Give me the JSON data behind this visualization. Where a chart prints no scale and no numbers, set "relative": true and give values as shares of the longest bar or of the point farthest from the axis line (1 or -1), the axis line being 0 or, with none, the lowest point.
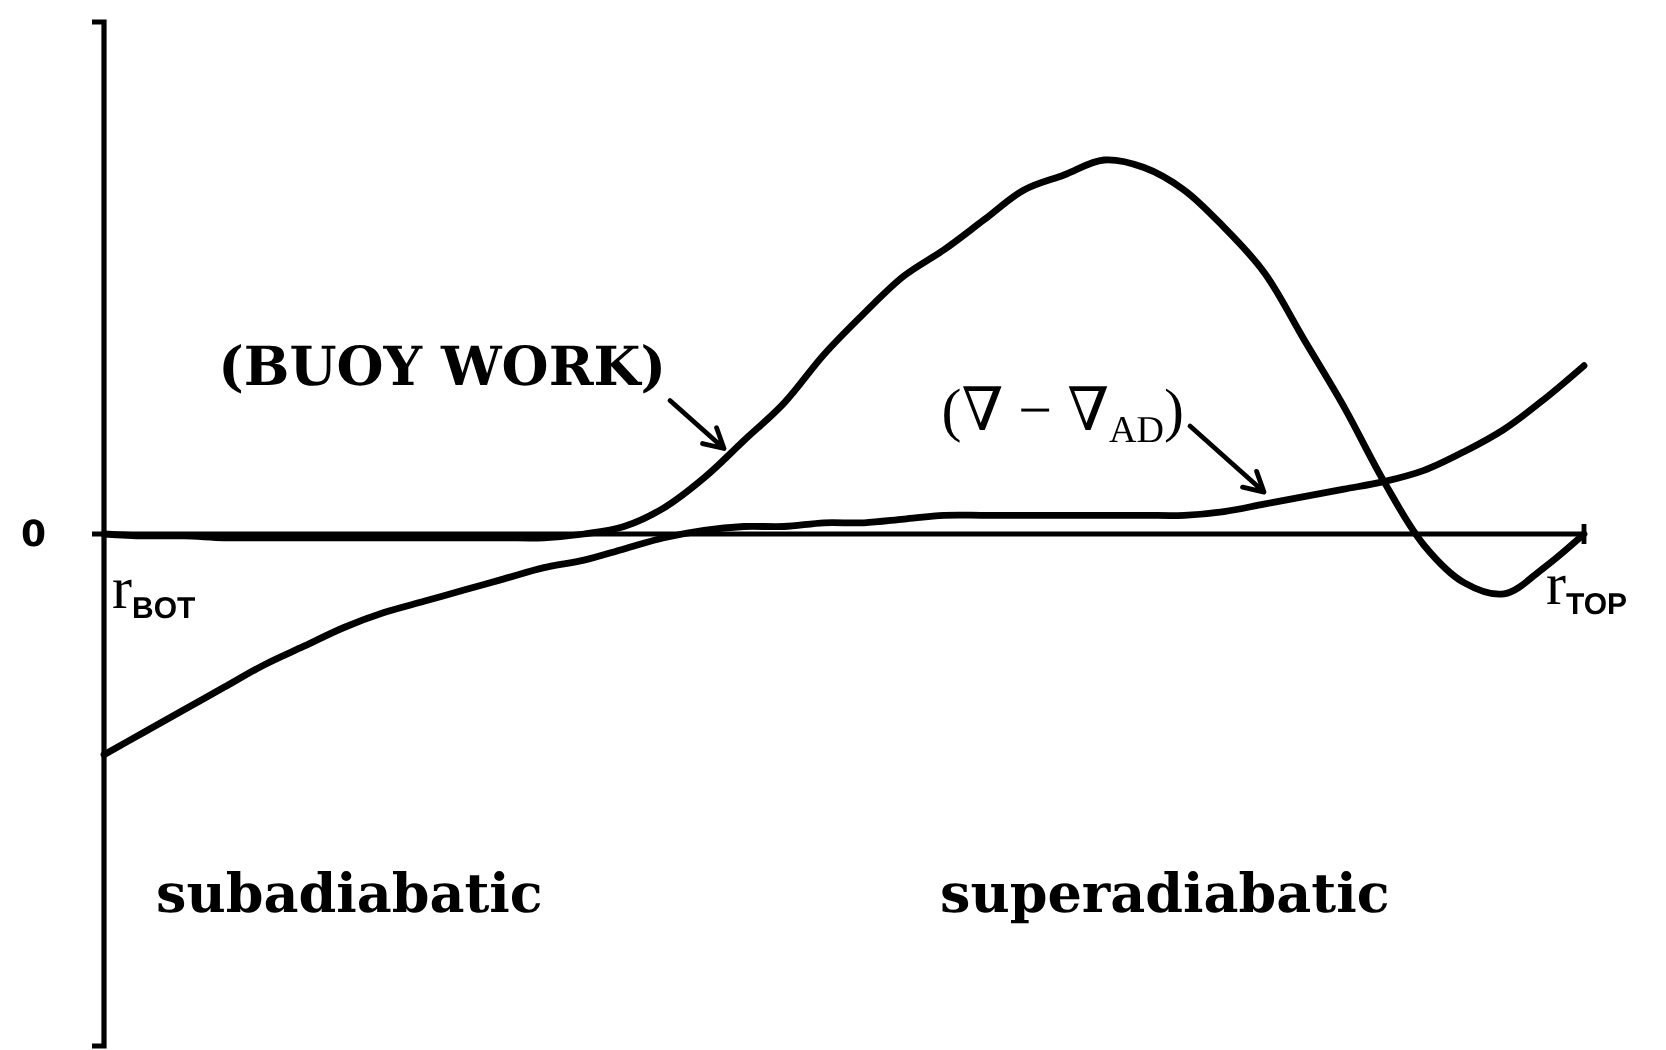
{
  "chart_data": {
    "type": "line",
    "relative": true,
    "line_style": "solid",
    "categories": [
      null,
      null,
      null,
      null,
      null,
      null,
      null,
      null,
      null,
      null,
      null,
      null,
      null,
      null,
      null,
      null,
      null,
      null,
      null,
      null,
      null,
      null,
      null,
      null,
      null,
      null,
      null,
      null,
      null,
      null,
      null,
      null,
      null,
      null,
      null,
      null,
      null,
      null
    ],
    "series": [
      {
        "name": "(BUOY WORK)",
        "color": "#000000",
        "values": [
          0,
          -0.005,
          -0.005,
          -0.01,
          -0.01,
          -0.01,
          -0.01,
          -0.01,
          -0.01,
          -0.01,
          -0.01,
          -0.01,
          0,
          0.02,
          0.07,
          0.15,
          0.25,
          0.35,
          0.48,
          0.59,
          0.69,
          0.76,
          0.84,
          0.92,
          0.96,
          1,
          0.98,
          0.92,
          0.82,
          0.7,
          0.52,
          0.34,
          0.14,
          -0.03,
          -0.13,
          -0.16,
          -0.09,
          0
        ]
      },
      {
        "name": "(∇ − ∇$_{AD}$)",
        "color": "#000000",
        "values": [
          -0.59,
          -0.53,
          -0.47,
          -0.41,
          -0.35,
          -0.3,
          -0.25,
          -0.21,
          -0.18,
          -0.15,
          -0.12,
          -0.09,
          -0.07,
          -0.04,
          -0.01,
          0.01,
          0.02,
          0.02,
          0.03,
          0.03,
          0.04,
          0.05,
          0.05,
          0.05,
          0.05,
          0.05,
          0.05,
          0.05,
          0.06,
          0.08,
          0.1,
          0.12,
          0.14,
          0.17,
          0.22,
          0.28,
          0.36,
          0.45
        ]
      }
    ],
    "annotations": [
      "0",
      "r$_{BOT}$",
      "r$_{TOP}$",
      "subadiabatic",
      "superadiabatic"
    ]
  }
}
